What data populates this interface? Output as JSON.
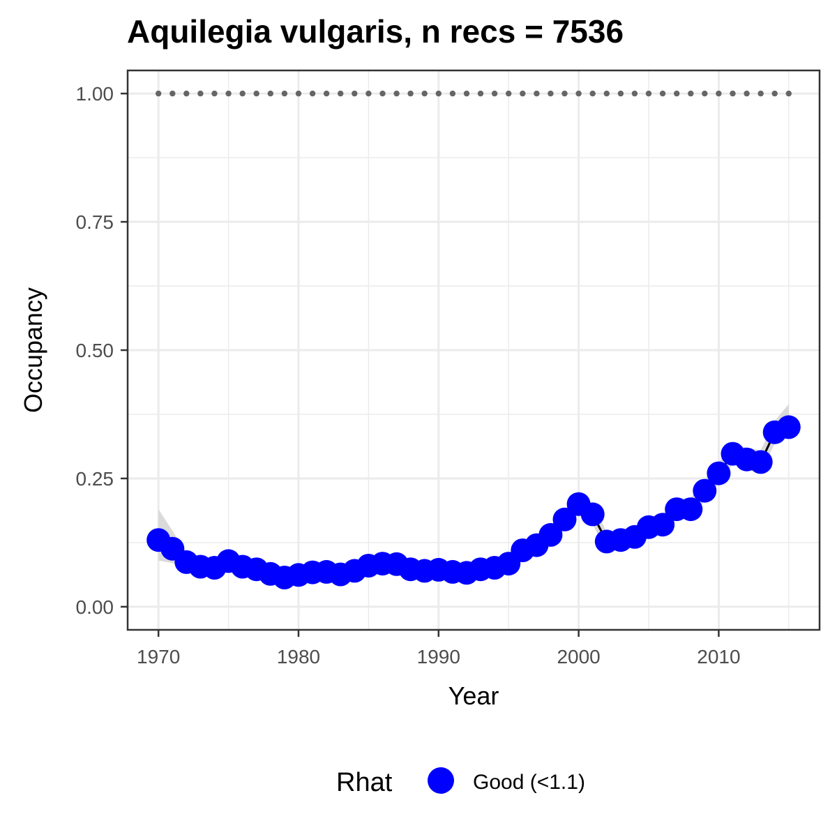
{
  "chart_data": {
    "type": "line",
    "title": "Aquilegia vulgaris, n recs = 7536",
    "xlabel": "Year",
    "ylabel": "Occupancy",
    "xlim": [
      1967.8,
      2017.2
    ],
    "ylim": [
      -0.045,
      1.045
    ],
    "x_ticks": [
      1970,
      1980,
      1990,
      2000,
      2010
    ],
    "x_tick_labels": [
      "1970",
      "1980",
      "1990",
      "2000",
      "2010"
    ],
    "y_ticks": [
      0.0,
      0.25,
      0.5,
      0.75,
      1.0
    ],
    "y_tick_labels": [
      "0.00",
      "0.25",
      "0.50",
      "0.75",
      "1.00"
    ],
    "grid": true,
    "legend": {
      "title": "Rhat",
      "position": "bottom",
      "entries": [
        {
          "label": "Good (<1.1)",
          "color": "#0000ff"
        }
      ]
    },
    "colors": {
      "point": "#0000ff",
      "line": "#000000",
      "ribbon": "#d3d3d3",
      "reference": "#666666",
      "grid": "#ebebeb",
      "border": "#333333"
    },
    "reference_line": {
      "y": 1.0,
      "style": "dotted"
    },
    "series": [
      {
        "x": [
          1970,
          1971,
          1972,
          1973,
          1974,
          1975,
          1976,
          1977,
          1978,
          1979,
          1980,
          1981,
          1982,
          1983,
          1984,
          1985,
          1986,
          1987,
          1988,
          1989,
          1990,
          1991,
          1992,
          1993,
          1994,
          1995,
          1996,
          1997,
          1998,
          1999,
          2000,
          2001,
          2002,
          2003,
          2004,
          2005,
          2006,
          2007,
          2008,
          2009,
          2010,
          2011,
          2012,
          2013,
          2014,
          2015
        ],
        "y": [
          0.13,
          0.113,
          0.087,
          0.078,
          0.076,
          0.089,
          0.078,
          0.073,
          0.064,
          0.057,
          0.062,
          0.067,
          0.068,
          0.063,
          0.07,
          0.08,
          0.084,
          0.083,
          0.073,
          0.07,
          0.072,
          0.068,
          0.066,
          0.073,
          0.076,
          0.084,
          0.11,
          0.12,
          0.14,
          0.17,
          0.2,
          0.18,
          0.127,
          0.13,
          0.136,
          0.155,
          0.16,
          0.19,
          0.19,
          0.226,
          0.26,
          0.298,
          0.287,
          0.282,
          0.34,
          0.35
        ],
        "lower": [
          0.09,
          0.085,
          0.075,
          0.068,
          0.066,
          0.077,
          0.068,
          0.063,
          0.055,
          0.049,
          0.054,
          0.058,
          0.059,
          0.055,
          0.061,
          0.07,
          0.074,
          0.073,
          0.064,
          0.061,
          0.063,
          0.059,
          0.057,
          0.063,
          0.066,
          0.073,
          0.097,
          0.106,
          0.124,
          0.152,
          0.18,
          0.16,
          0.11,
          0.114,
          0.12,
          0.138,
          0.143,
          0.172,
          0.172,
          0.206,
          0.24,
          0.278,
          0.265,
          0.262,
          0.318,
          0.33
        ],
        "upper": [
          0.19,
          0.148,
          0.105,
          0.093,
          0.089,
          0.103,
          0.09,
          0.085,
          0.075,
          0.068,
          0.073,
          0.078,
          0.079,
          0.074,
          0.081,
          0.092,
          0.096,
          0.095,
          0.085,
          0.081,
          0.083,
          0.079,
          0.077,
          0.085,
          0.088,
          0.097,
          0.126,
          0.136,
          0.158,
          0.19,
          0.225,
          0.2,
          0.145,
          0.148,
          0.155,
          0.175,
          0.18,
          0.21,
          0.212,
          0.248,
          0.282,
          0.318,
          0.31,
          0.305,
          0.362,
          0.395
        ]
      }
    ]
  }
}
